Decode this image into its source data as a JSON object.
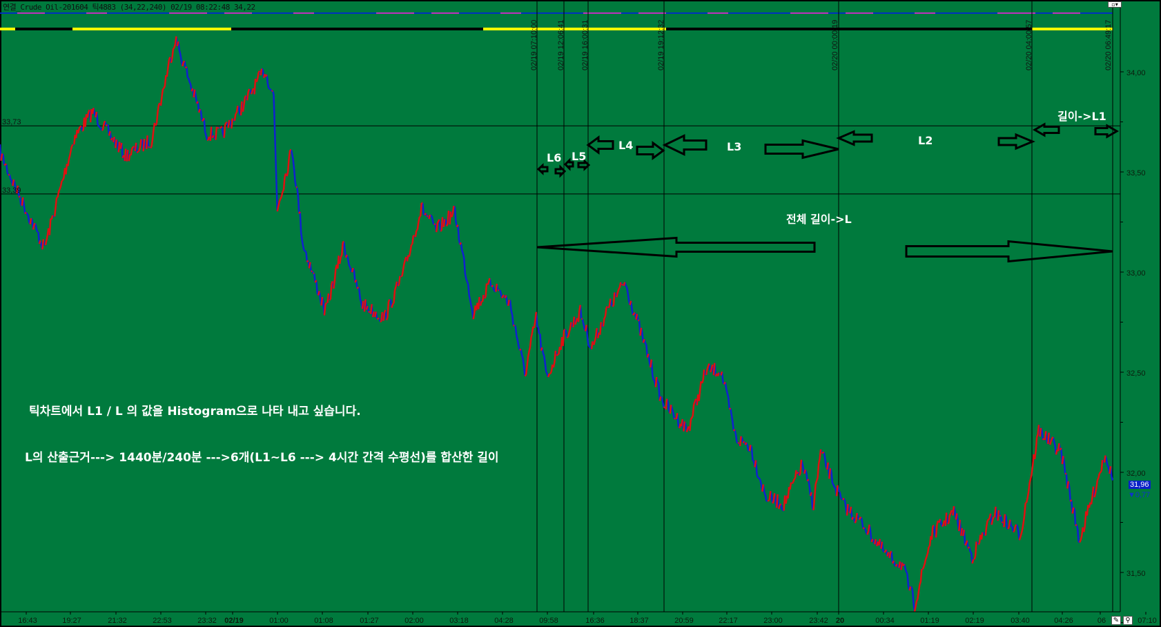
{
  "title": "연결_Crude Oil-201604 틱4883  (34,22,240) 02/19 08:22:48 34,22",
  "colors": {
    "background": "#007a3d",
    "up": "#e01010",
    "down": "#1020d0",
    "current_price_bg": "#0a20c8",
    "band_top_a": "#c030c0",
    "band_top_b": "#0030c0",
    "band_bottom_a": "#ffff00",
    "band_bottom_b": "#000000"
  },
  "price_axis": {
    "ticks": [
      "34,00",
      "33,50",
      "33,00",
      "32,50",
      "32,00",
      "31,50"
    ],
    "values": [
      34.0,
      33.5,
      33.0,
      32.5,
      32.0,
      31.5
    ]
  },
  "time_axis": {
    "ticks": [
      "16:43",
      "19:27",
      "21:32",
      "22:53",
      "23:32",
      "02/19",
      "01:00",
      "01:08",
      "01:27",
      "02:00",
      "03:18",
      "04:28",
      "09:58",
      "16:36",
      "18:37",
      "20:59",
      "22:17",
      "23:00",
      "23:42",
      "20",
      "00:34",
      "01:19",
      "02:19",
      "03:40",
      "04:26",
      "06",
      "07:10"
    ],
    "bold": [
      "02/19",
      "20"
    ]
  },
  "horizontal_lines": [
    {
      "label": "33,73",
      "value": 33.73
    },
    {
      "label": "33,39",
      "value": 33.39
    }
  ],
  "vertical_lines": [
    "02/19 07:10:00",
    "02/19 12:06:41",
    "02/19 16:00:31",
    "02/19 19:12:32",
    "02/20 00:00:19",
    "02/20 04:00:57",
    "02/20 06:49:17"
  ],
  "current": {
    "price": "31,96",
    "change": "▼0,77"
  },
  "annotations": {
    "l6": "L6",
    "l5": "L5",
    "l4": "L4",
    "l3": "L3",
    "l2": "L2",
    "l1": "길이->L1",
    "total": "전체 길이->L",
    "line1": "틱차트에서 L1 / L 의 값을 Histogram으로 나타 내고 싶습니다.",
    "line2": "L의 산출근거---> 1440분/240분 --->6개(L1~L6 ---> 4시간 간격 수평선)를 합산한 길이"
  },
  "icons": {
    "top_right": "window-restore-dropdown-icon",
    "pencil": "pencil-icon",
    "zoom": "magnifier-icon"
  },
  "chart_data": {
    "type": "line",
    "title": "연결_Crude Oil-201604 틱4883",
    "xlabel": "",
    "ylabel": "",
    "xlim": [
      0,
      4883
    ],
    "ylim": [
      31.28,
      34.35
    ],
    "series": [
      {
        "x": [
          0,
          65,
          195,
          325,
          406,
          552,
          665,
          769,
          909,
          974,
          1071,
          1162,
          1201,
          1217,
          1282,
          1330,
          1428,
          1509,
          1590,
          1687,
          1769,
          1850,
          1915,
          1996,
          2077,
          2158,
          2239,
          2304,
          2353,
          2401,
          2466,
          2547,
          2596,
          2661,
          2742,
          2823,
          2904,
          3018,
          3099,
          3164,
          3229,
          3294,
          3359,
          3440,
          3521,
          3570,
          3602,
          3699,
          3797,
          3894,
          3959,
          4014,
          4089,
          4186,
          4267,
          4365,
          4478,
          4559,
          4657,
          4738,
          4803,
          4851,
          4883
        ],
        "y": [
          33.6,
          33.43,
          33.12,
          33.67,
          33.8,
          33.58,
          33.66,
          34.17,
          33.69,
          33.69,
          33.84,
          34.01,
          33.88,
          33.32,
          33.62,
          33.14,
          32.8,
          33.14,
          32.84,
          32.77,
          32.99,
          33.32,
          33.21,
          33.3,
          32.8,
          32.95,
          32.84,
          32.49,
          32.77,
          32.47,
          32.66,
          32.8,
          32.62,
          32.8,
          32.95,
          32.66,
          32.36,
          32.21,
          32.51,
          32.51,
          32.17,
          32.13,
          31.88,
          31.84,
          32.04,
          31.84,
          32.1,
          31.84,
          31.73,
          31.58,
          31.54,
          31.34,
          31.69,
          31.8,
          31.58,
          31.8,
          31.69,
          32.21,
          32.1,
          31.66,
          31.91,
          32.1,
          31.96
        ]
      }
    ]
  }
}
